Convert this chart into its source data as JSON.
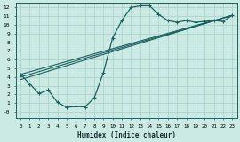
{
  "xlabel": "Humidex (Indice chaleur)",
  "ylabel": "",
  "xlim": [
    -0.5,
    23.5
  ],
  "ylim": [
    -0.7,
    12.5
  ],
  "xticks": [
    0,
    1,
    2,
    3,
    4,
    5,
    6,
    7,
    8,
    9,
    10,
    11,
    12,
    13,
    14,
    15,
    16,
    17,
    18,
    19,
    20,
    21,
    22,
    23
  ],
  "yticks": [
    0,
    1,
    2,
    3,
    4,
    5,
    6,
    7,
    8,
    9,
    10,
    11,
    12
  ],
  "ytick_labels": [
    "-0",
    "1",
    "2",
    "3",
    "4",
    "5",
    "6",
    "7",
    "8",
    "9",
    "10",
    "11",
    "12"
  ],
  "background_color": "#cceae4",
  "grid_color": "#a8cfc8",
  "line_color": "#1a6060",
  "curve1_x": [
    0,
    1,
    2,
    3,
    4,
    5,
    6,
    7,
    8,
    9,
    10,
    11,
    12,
    13,
    14,
    15,
    16,
    17,
    18,
    19,
    20,
    21,
    22,
    23
  ],
  "curve1_y": [
    4.3,
    3.2,
    2.1,
    2.5,
    1.1,
    0.5,
    0.6,
    0.55,
    1.6,
    4.5,
    8.5,
    10.5,
    12.0,
    12.2,
    12.2,
    11.2,
    10.5,
    10.3,
    10.5,
    10.3,
    10.4,
    10.5,
    10.4,
    11.1
  ],
  "trend1_x": [
    0,
    23
  ],
  "trend1_y": [
    4.3,
    11.1
  ],
  "trend2_x": [
    0,
    23
  ],
  "trend2_y": [
    4.0,
    11.1
  ],
  "trend3_x": [
    0,
    23
  ],
  "trend3_y": [
    3.7,
    11.1
  ]
}
